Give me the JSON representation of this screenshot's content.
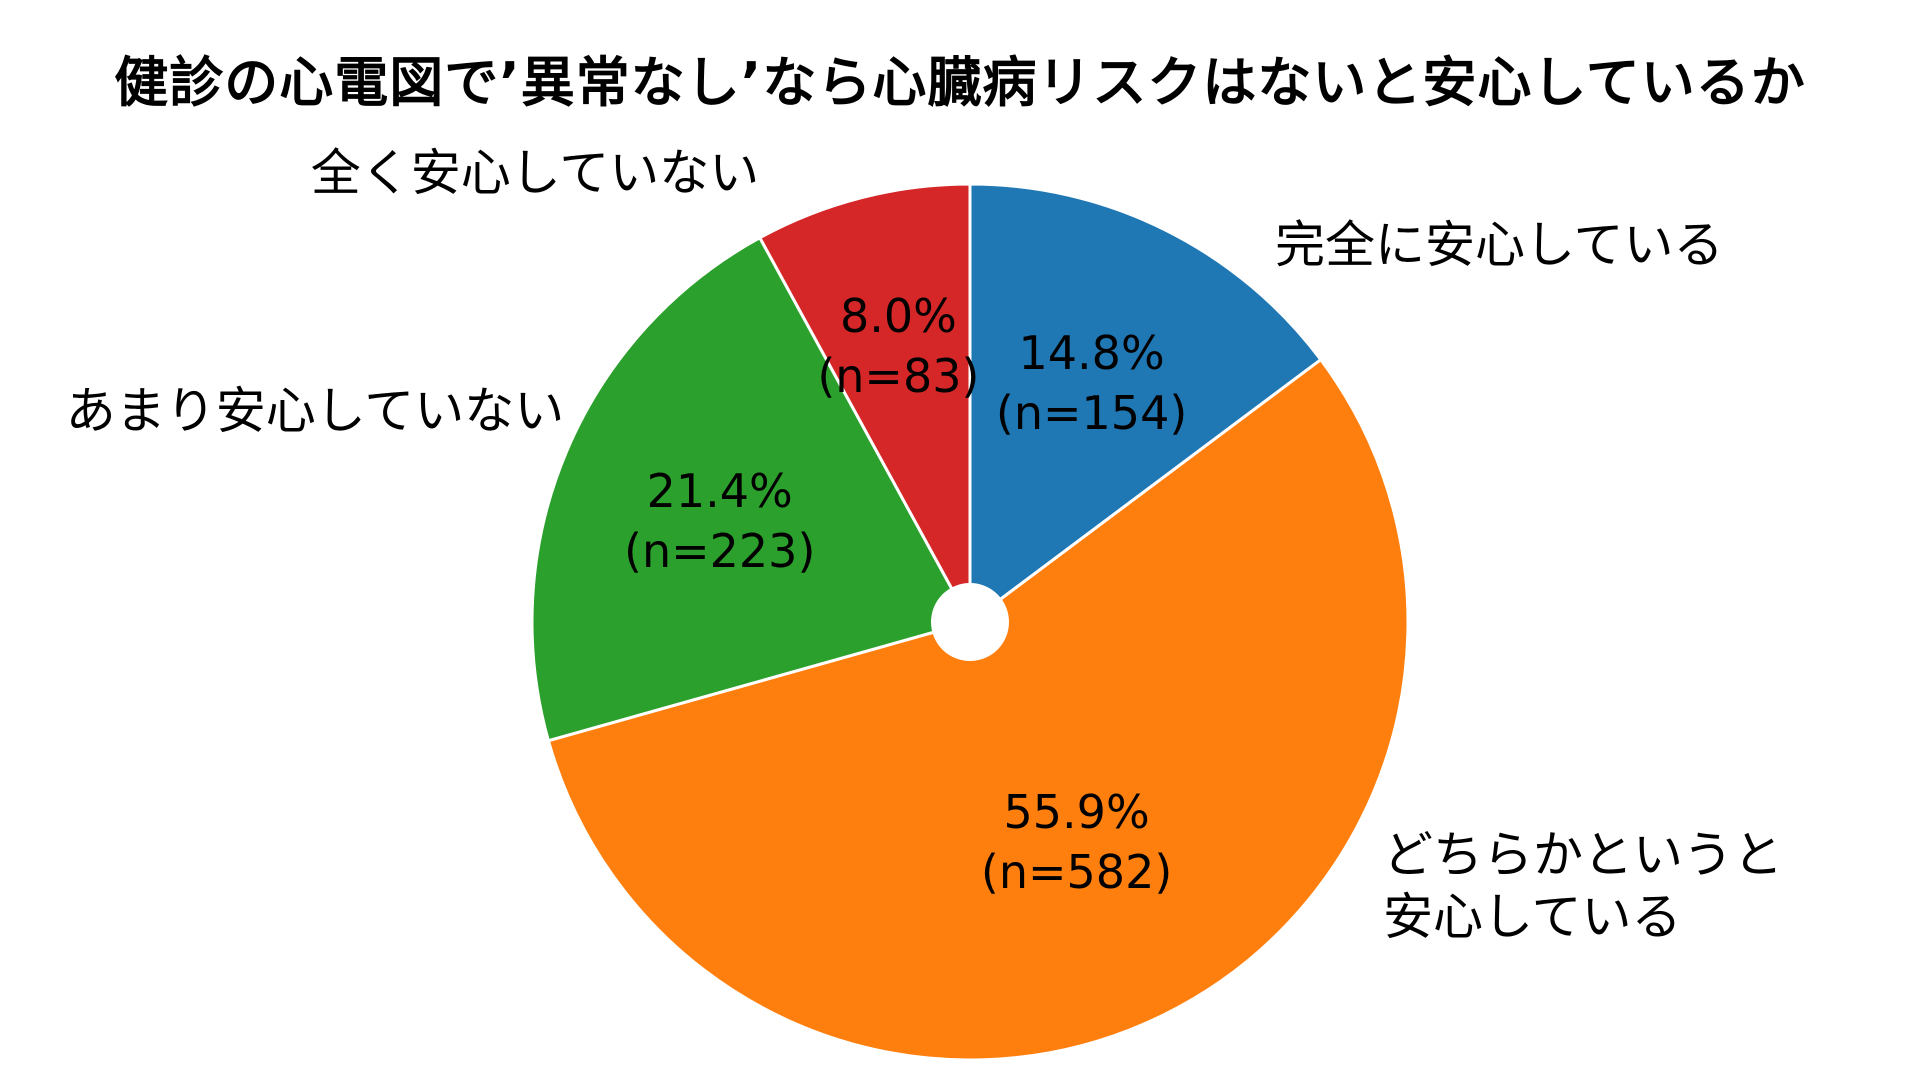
{
  "chart_data": {
    "type": "pie",
    "title": "健診の心電図で’異常なし’なら心臓病リスクはないと安心しているか",
    "donut_hole": true,
    "start_angle_deg": 90,
    "direction": "clockwise",
    "slices": [
      {
        "label_lines": [
          "完全に安心している"
        ],
        "percent_label": "14.8%",
        "count_label": "(n=154)",
        "value": 154,
        "percent": 14.8,
        "color": "#1f77b4",
        "label_side": "right"
      },
      {
        "label_lines": [
          "どちらかというと",
          "安心している"
        ],
        "percent_label": "55.9%",
        "count_label": "(n=582)",
        "value": 582,
        "percent": 55.9,
        "color": "#ff7f0e",
        "label_side": "right"
      },
      {
        "label_lines": [
          "あまり安心していない"
        ],
        "percent_label": "21.4%",
        "count_label": "(n=223)",
        "value": 223,
        "percent": 21.4,
        "color": "#2ca02c",
        "label_side": "left"
      },
      {
        "label_lines": [
          "全く安心していない"
        ],
        "percent_label": "8.0%",
        "count_label": "(n=83)",
        "value": 83,
        "percent": 8.0,
        "color": "#d62728",
        "label_side": "left"
      }
    ]
  }
}
